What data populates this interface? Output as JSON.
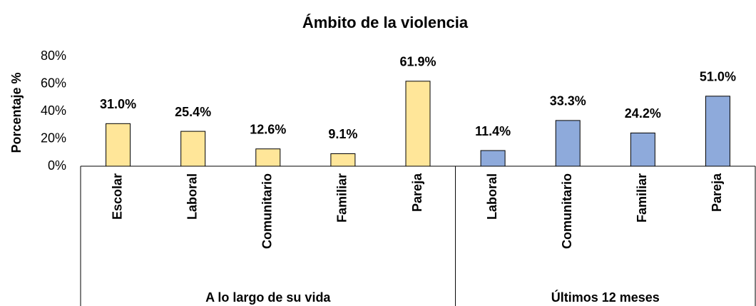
{
  "chart_data": {
    "type": "bar",
    "title": "Ámbito de la violencia",
    "y_label": "Porcentaje %",
    "groups": [
      {
        "label": "A lo largo de su vida",
        "color": "#ffe699",
        "categories": [
          "Escolar",
          "Laboral",
          "Comunitario",
          "Familiar",
          "Pareja"
        ],
        "values": [
          31.0,
          25.4,
          12.6,
          9.1,
          61.9
        ],
        "value_labels": [
          "31.0%",
          "25.4%",
          "12.6%",
          "9.1%",
          "61.9%"
        ]
      },
      {
        "label": "Últimos 12 meses",
        "color": "#8eaadb",
        "categories": [
          "Laboral",
          "Comunitario",
          "Familiar",
          "Pareja"
        ],
        "values": [
          11.4,
          33.3,
          24.2,
          51.0
        ],
        "value_labels": [
          "11.4%",
          "33.3%",
          "24.2%",
          "51.0%"
        ]
      }
    ],
    "ylim": [
      0,
      80
    ],
    "yticks": [
      {
        "value": 0,
        "label": "0%"
      },
      {
        "value": 20,
        "label": "20%"
      },
      {
        "value": 40,
        "label": "40%"
      },
      {
        "value": 60,
        "label": "60%"
      },
      {
        "value": 80,
        "label": "80%"
      }
    ]
  }
}
